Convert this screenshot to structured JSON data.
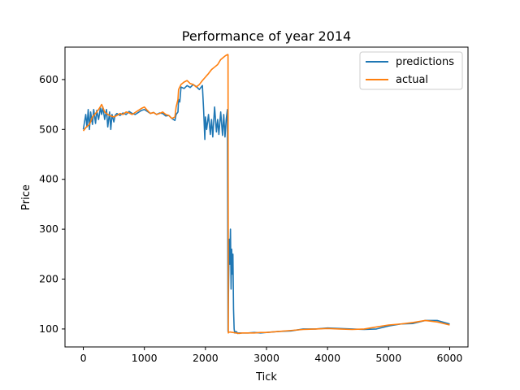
{
  "chart_data": {
    "type": "line",
    "title": "Performance of year 2014",
    "xlabel": "Tick",
    "ylabel": "Price",
    "xlim": [
      -300,
      6300
    ],
    "ylim": [
      64,
      665
    ],
    "xticks": [
      0,
      1000,
      2000,
      3000,
      4000,
      5000,
      6000
    ],
    "yticks": [
      100,
      200,
      300,
      400,
      500,
      600
    ],
    "grid": false,
    "legend_position": "top-right",
    "series": [
      {
        "name": "predictions",
        "color": "#1f77b4",
        "x": [
          0,
          40,
          60,
          80,
          100,
          120,
          150,
          170,
          200,
          220,
          250,
          280,
          300,
          320,
          350,
          380,
          400,
          430,
          450,
          470,
          500,
          520,
          550,
          600,
          650,
          700,
          750,
          800,
          850,
          900,
          950,
          1000,
          1050,
          1100,
          1150,
          1200,
          1250,
          1300,
          1350,
          1400,
          1450,
          1500,
          1520,
          1550,
          1560,
          1580,
          1600,
          1650,
          1700,
          1750,
          1800,
          1850,
          1900,
          1950,
          1970,
          1990,
          2000,
          2020,
          2050,
          2080,
          2100,
          2120,
          2150,
          2180,
          2200,
          2220,
          2250,
          2280,
          2300,
          2320,
          2340,
          2360,
          2370,
          2380,
          2390,
          2400,
          2410,
          2420,
          2430,
          2440,
          2450,
          2460,
          2470,
          2480,
          2500,
          2520,
          2530,
          2540,
          2560,
          2600,
          2700,
          2800,
          2900,
          3000,
          3200,
          3400,
          3600,
          3800,
          4000,
          4200,
          4400,
          4600,
          4800,
          5000,
          5200,
          5400,
          5600,
          5800,
          6000
        ],
        "y": [
          500,
          530,
          505,
          540,
          500,
          535,
          510,
          540,
          512,
          538,
          520,
          543,
          530,
          545,
          520,
          540,
          505,
          535,
          500,
          530,
          515,
          528,
          532,
          528,
          533,
          530,
          536,
          532,
          530,
          534,
          538,
          540,
          536,
          532,
          534,
          530,
          533,
          532,
          527,
          528,
          522,
          518,
          530,
          535,
          560,
          555,
          585,
          582,
          588,
          584,
          590,
          586,
          580,
          588,
          540,
          480,
          525,
          500,
          530,
          490,
          520,
          485,
          545,
          495,
          520,
          490,
          535,
          488,
          530,
          485,
          520,
          540,
          95,
          200,
          280,
          230,
          300,
          180,
          260,
          210,
          250,
          140,
          100,
          92,
          95,
          93,
          91,
          92,
          92,
          92,
          92,
          93,
          92,
          93,
          95,
          96,
          100,
          100,
          102,
          101,
          100,
          99,
          100,
          106,
          110,
          111,
          117,
          117,
          110
        ]
      },
      {
        "name": "actual",
        "color": "#ff7f0e",
        "x": [
          0,
          50,
          100,
          150,
          200,
          250,
          300,
          350,
          400,
          450,
          500,
          550,
          600,
          650,
          700,
          750,
          800,
          850,
          900,
          950,
          1000,
          1050,
          1100,
          1150,
          1200,
          1250,
          1300,
          1350,
          1400,
          1450,
          1500,
          1520,
          1550,
          1560,
          1600,
          1650,
          1700,
          1750,
          1800,
          1850,
          1900,
          1950,
          2000,
          2050,
          2100,
          2150,
          2200,
          2250,
          2300,
          2330,
          2360,
          2370,
          2375,
          2380,
          2400,
          2450,
          2500,
          2550,
          2600,
          2700,
          2800,
          2900,
          3000,
          3200,
          3400,
          3600,
          3800,
          4000,
          4200,
          4400,
          4600,
          4800,
          5000,
          5200,
          5400,
          5600,
          5800,
          6000
        ],
        "y": [
          497,
          505,
          510,
          525,
          532,
          540,
          550,
          535,
          530,
          527,
          525,
          528,
          532,
          530,
          535,
          533,
          530,
          534,
          538,
          542,
          545,
          538,
          532,
          534,
          530,
          532,
          535,
          530,
          528,
          522,
          525,
          545,
          560,
          580,
          590,
          595,
          598,
          592,
          590,
          585,
          590,
          598,
          605,
          612,
          620,
          625,
          630,
          640,
          645,
          648,
          650,
          650,
          92,
          93,
          94,
          93,
          92,
          91,
          92,
          92,
          92,
          93,
          93,
          95,
          97,
          99,
          100,
          101,
          100,
          99,
          100,
          104,
          108,
          110,
          113,
          117,
          114,
          108
        ]
      }
    ]
  }
}
